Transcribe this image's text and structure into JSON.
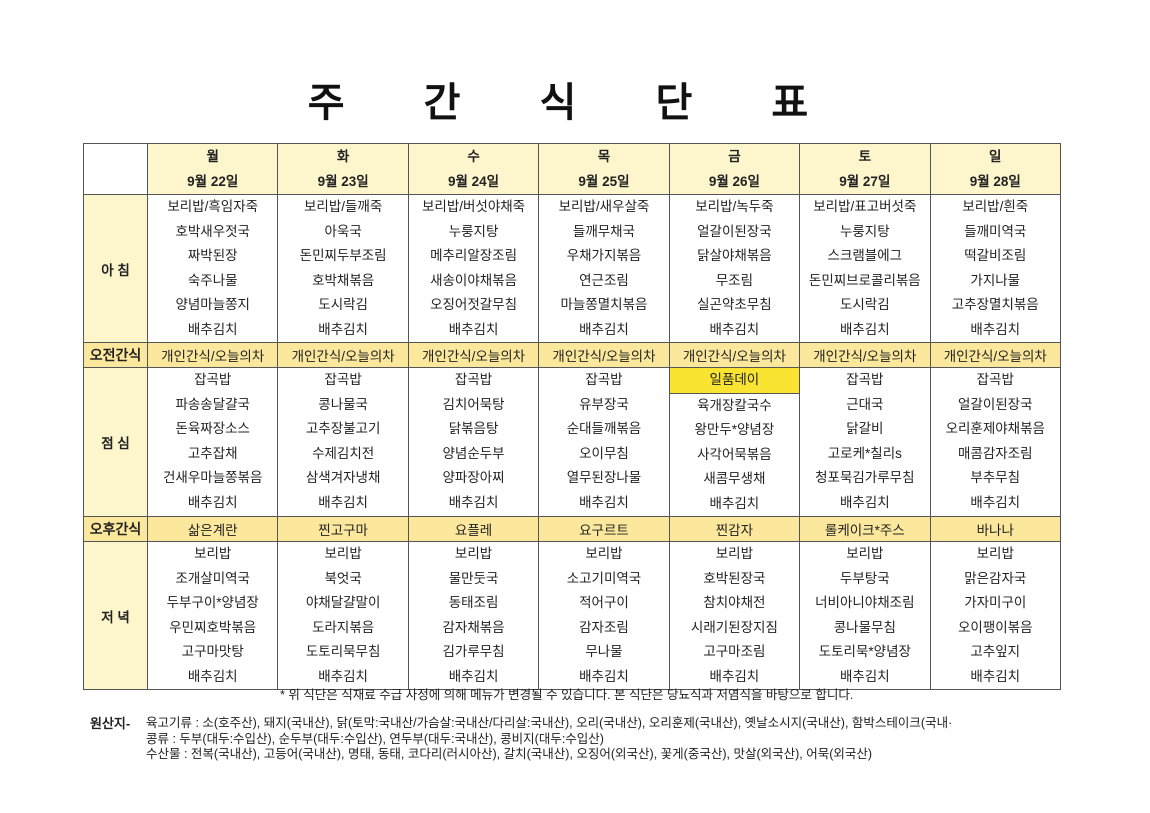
{
  "title": "주 간 식 단 표",
  "days": [
    {
      "day": "월",
      "date": "9월 22일"
    },
    {
      "day": "화",
      "date": "9월 23일"
    },
    {
      "day": "수",
      "date": "9월 24일"
    },
    {
      "day": "목",
      "date": "9월 25일"
    },
    {
      "day": "금",
      "date": "9월 26일"
    },
    {
      "day": "토",
      "date": "9월 27일"
    },
    {
      "day": "일",
      "date": "9월 28일"
    }
  ],
  "breakfast": {
    "label": "아 침",
    "menus": [
      [
        "보리밥/흑임자죽",
        "호박새우젓국",
        "짜박된장",
        "숙주나물",
        "양념마늘쫑지",
        "배추김치"
      ],
      [
        "보리밥/들깨죽",
        "아욱국",
        "돈민찌두부조림",
        "호박채볶음",
        "도시락김",
        "배추김치"
      ],
      [
        "보리밥/버섯야채죽",
        "누룽지탕",
        "메추리알장조림",
        "새송이야채볶음",
        "오징어젓갈무침",
        "배추김치"
      ],
      [
        "보리밥/새우살죽",
        "들깨무채국",
        "우채가지볶음",
        "연근조림",
        "마늘쫑멸치볶음",
        "배추김치"
      ],
      [
        "보리밥/녹두죽",
        "얼갈이된장국",
        "닭살야채볶음",
        "무조림",
        "실곤약초무침",
        "배추김치"
      ],
      [
        "보리밥/표고버섯죽",
        "누룽지탕",
        "스크램블에그",
        "돈민찌브로콜리볶음",
        "도시락김",
        "배추김치"
      ],
      [
        "보리밥/흰죽",
        "들깨미역국",
        "떡갈비조림",
        "가지나물",
        "고추장멸치볶음",
        "배추김치"
      ]
    ]
  },
  "am_snack": {
    "label": "오전간식",
    "items": [
      "개인간식/오늘의차",
      "개인간식/오늘의차",
      "개인간식/오늘의차",
      "개인간식/오늘의차",
      "개인간식/오늘의차",
      "개인간식/오늘의차",
      "개인간식/오늘의차"
    ]
  },
  "lunch": {
    "label": "점 심",
    "highlight": {
      "day": 4,
      "item": 0,
      "color": "#f8e431"
    },
    "menus": [
      [
        "잡곡밥",
        "파송송달걀국",
        "돈육짜장소스",
        "고추잡채",
        "건새우마늘쫑볶음",
        "배추김치"
      ],
      [
        "잡곡밥",
        "콩나물국",
        "고추장불고기",
        "수제김치전",
        "삼색겨자냉채",
        "배추김치"
      ],
      [
        "잡곡밥",
        "김치어묵탕",
        "닭볶음탕",
        "양념순두부",
        "양파장아찌",
        "배추김치"
      ],
      [
        "잡곡밥",
        "유부장국",
        "순대들깨볶음",
        "오이무침",
        "열무된장나물",
        "배추김치"
      ],
      [
        "일품데이",
        "육개장칼국수",
        "왕만두*양념장",
        "사각어묵볶음",
        "새콤무생채",
        "배추김치"
      ],
      [
        "잡곡밥",
        "근대국",
        "닭갈비",
        "고로케*칠리s",
        "청포묵김가루무침",
        "배추김치"
      ],
      [
        "잡곡밥",
        "얼갈이된장국",
        "오리훈제야채볶음",
        "매콤감자조림",
        "부추무침",
        "배추김치"
      ]
    ]
  },
  "pm_snack": {
    "label": "오후간식",
    "items": [
      "삶은계란",
      "찐고구마",
      "요플레",
      "요구르트",
      "찐감자",
      "롤케이크*주스",
      "바나나"
    ]
  },
  "dinner": {
    "label": "저 녁",
    "menus": [
      [
        "보리밥",
        "조개살미역국",
        "두부구이*양념장",
        "우민찌호박볶음",
        "고구마맛탕",
        "배추김치"
      ],
      [
        "보리밥",
        "북엇국",
        "야채달걀말이",
        "도라지볶음",
        "도토리묵무침",
        "배추김치"
      ],
      [
        "보리밥",
        "물만둣국",
        "동태조림",
        "감자채볶음",
        "김가루무침",
        "배추김치"
      ],
      [
        "보리밥",
        "소고기미역국",
        "적어구이",
        "감자조림",
        "무나물",
        "배추김치"
      ],
      [
        "보리밥",
        "호박된장국",
        "참치야채전",
        "시래기된장지짐",
        "고구마조림",
        "배추김치"
      ],
      [
        "보리밥",
        "두부탕국",
        "너비아니야채조림",
        "콩나물무침",
        "도토리묵*양념장",
        "배추김치"
      ],
      [
        "보리밥",
        "맑은감자국",
        "가자미구이",
        "오이팽이볶음",
        "고추잎지",
        "배추김치"
      ]
    ]
  },
  "footnote": "* 위 식단은 식재료 수급 사정에 의해 메뉴가 변경될 수 있습니다. 본 식단은 당뇨식과 저염식을 바탕으로 합니다.",
  "origin": {
    "label": "원산지-",
    "lines": [
      "육고기류 : 소(호주산), 돼지(국내산), 닭(토막:국내산/가슴살:국내산/다리살:국내산), 오리(국내산), 오리훈제(국내산), 옛날소시지(국내산), 함박스테이크(국내·",
      "콩류 : 두부(대두:수입산), 순두부(대두:수입산), 연두부(대두:국내산), 콩비지(대두:수입산)",
      "수산물 : 전복(국내산), 고등어(국내산), 명태, 동태, 코다리(러시아산), 갈치(국내산), 오징어(외국산), 꽃게(중국산), 맛살(외국산), 어묵(외국산)"
    ]
  },
  "colors": {
    "header_bg": "#fdf6cc",
    "snack_bg": "#fbe89c",
    "highlight": "#f8e431",
    "border": "#555555"
  }
}
